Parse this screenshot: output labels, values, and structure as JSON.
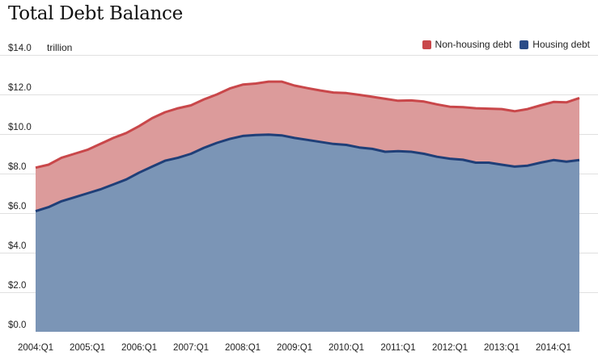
{
  "title": "Total Debt Balance",
  "unit_label": "trillion",
  "colors": {
    "nonhousing_fill": "#dc9b9b",
    "nonhousing_line": "#c9474a",
    "housing_fill": "#7b95b6",
    "housing_line": "#1f3f78",
    "legend_nonhousing": "#c9474a",
    "legend_housing": "#2a4c88",
    "grid": "#e0e0e0"
  },
  "chart_data": {
    "type": "area",
    "title": "Total Debt Balance",
    "ylabel": "trillion",
    "ylim": [
      0,
      14
    ],
    "stacked": true,
    "grid": true,
    "legend_position": "top-right",
    "y_ticks": [
      {
        "value": 14,
        "label": "$14.0"
      },
      {
        "value": 12,
        "label": "$12.0"
      },
      {
        "value": 10,
        "label": "$10.0"
      },
      {
        "value": 8,
        "label": "$8.0"
      },
      {
        "value": 6,
        "label": "$6.0"
      },
      {
        "value": 4,
        "label": "$4.0"
      },
      {
        "value": 2,
        "label": "$2.0"
      },
      {
        "value": 0,
        "label": "$0.0"
      }
    ],
    "x_tick_labels": [
      "2004:Q1",
      "2005:Q1",
      "2006:Q1",
      "2007:Q1",
      "2008:Q1",
      "2009:Q1",
      "2010:Q1",
      "2011:Q1",
      "2012:Q1",
      "2013:Q1",
      "2014:Q1"
    ],
    "x": [
      "2004:Q1",
      "2004:Q2",
      "2004:Q3",
      "2004:Q4",
      "2005:Q1",
      "2005:Q2",
      "2005:Q3",
      "2005:Q4",
      "2006:Q1",
      "2006:Q2",
      "2006:Q3",
      "2006:Q4",
      "2007:Q1",
      "2007:Q2",
      "2007:Q3",
      "2007:Q4",
      "2008:Q1",
      "2008:Q2",
      "2008:Q3",
      "2008:Q4",
      "2009:Q1",
      "2009:Q2",
      "2009:Q3",
      "2009:Q4",
      "2010:Q1",
      "2010:Q2",
      "2010:Q3",
      "2010:Q4",
      "2011:Q1",
      "2011:Q2",
      "2011:Q3",
      "2011:Q4",
      "2012:Q1",
      "2012:Q2",
      "2012:Q3",
      "2012:Q4",
      "2013:Q1",
      "2013:Q2",
      "2013:Q3",
      "2013:Q4",
      "2014:Q1",
      "2014:Q2",
      "2014:Q3"
    ],
    "series": [
      {
        "name": "Housing debt",
        "values": [
          6.1,
          6.3,
          6.6,
          6.8,
          7.0,
          7.2,
          7.45,
          7.7,
          8.05,
          8.35,
          8.65,
          8.8,
          9.0,
          9.3,
          9.55,
          9.75,
          9.9,
          9.95,
          9.97,
          9.93,
          9.8,
          9.7,
          9.6,
          9.5,
          9.45,
          9.32,
          9.25,
          9.1,
          9.13,
          9.1,
          9.0,
          8.85,
          8.75,
          8.7,
          8.55,
          8.55,
          8.45,
          8.35,
          8.4,
          8.55,
          8.68,
          8.6,
          8.68
        ]
      },
      {
        "name": "Non-housing debt",
        "values": [
          2.2,
          2.15,
          2.2,
          2.2,
          2.2,
          2.3,
          2.35,
          2.35,
          2.35,
          2.45,
          2.45,
          2.5,
          2.45,
          2.45,
          2.45,
          2.55,
          2.6,
          2.6,
          2.68,
          2.72,
          2.65,
          2.62,
          2.6,
          2.6,
          2.62,
          2.66,
          2.63,
          2.68,
          2.55,
          2.6,
          2.64,
          2.65,
          2.63,
          2.66,
          2.75,
          2.73,
          2.81,
          2.8,
          2.86,
          2.9,
          2.94,
          3.0,
          3.14
        ]
      }
    ]
  }
}
